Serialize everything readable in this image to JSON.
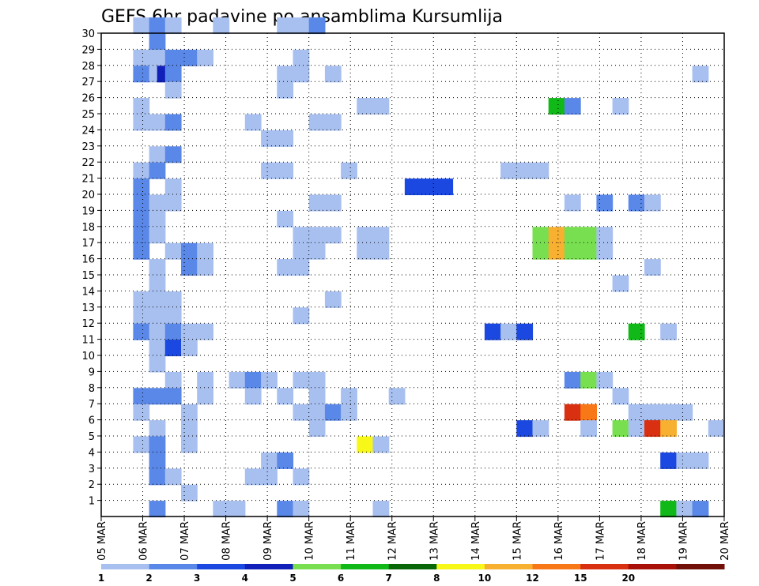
{
  "chart_data": {
    "type": "heatmap",
    "title": "GEFS 6hr padavine po ansamblima Kursumlija",
    "x_ticks": [
      "05 MAR",
      "06 MAR",
      "07 MAR",
      "08 MAR",
      "09 MAR",
      "10 MAR",
      "11 MAR",
      "12 MAR",
      "13 MAR",
      "14 MAR",
      "15 MAR",
      "16 MAR",
      "17 MAR",
      "18 MAR",
      "19 MAR",
      "20 MAR"
    ],
    "y_ticks": [
      "1",
      "2",
      "3",
      "4",
      "5",
      "6",
      "7",
      "8",
      "9",
      "10",
      "11",
      "12",
      "13",
      "14",
      "15",
      "16",
      "17",
      "18",
      "19",
      "20",
      "21",
      "22",
      "23",
      "24",
      "25",
      "26",
      "27",
      "28",
      "29",
      "30"
    ],
    "ylim": [
      0,
      30
    ],
    "grid": true,
    "legend": "colorbar-bottom",
    "colorbar": {
      "levels": [
        "1",
        "2",
        "3",
        "4",
        "5",
        "6",
        "7",
        "8",
        "10",
        "12",
        "15",
        "20"
      ],
      "colors": [
        "#a8c0f0",
        "#5a88e8",
        "#1a48e0",
        "#1020b8",
        "#78e050",
        "#10b818",
        "#086808",
        "#f8f818",
        "#f8b030",
        "#f87818",
        "#d83010",
        "#a81008",
        "#701008"
      ]
    },
    "cells": [
      [
        30,
        2,
        1
      ],
      [
        30,
        3,
        2
      ],
      [
        30,
        4,
        1
      ],
      [
        30,
        7,
        1
      ],
      [
        30,
        11,
        1
      ],
      [
        30,
        12,
        1
      ],
      [
        30,
        13,
        2
      ],
      [
        29,
        3,
        2
      ],
      [
        28,
        2,
        1
      ],
      [
        28,
        3,
        1
      ],
      [
        28,
        4,
        2
      ],
      [
        28,
        5,
        2
      ],
      [
        28,
        6,
        1
      ],
      [
        28,
        12,
        1
      ],
      [
        27,
        2,
        2
      ],
      [
        27,
        3,
        1
      ],
      [
        27,
        3.5,
        4
      ],
      [
        27,
        4,
        2
      ],
      [
        27,
        11,
        1
      ],
      [
        27,
        12,
        1
      ],
      [
        27,
        14,
        1
      ],
      [
        27,
        37,
        1
      ],
      [
        26,
        4,
        1
      ],
      [
        26,
        11,
        1
      ],
      [
        25,
        2,
        1
      ],
      [
        25,
        16,
        1
      ],
      [
        25,
        17,
        1
      ],
      [
        25,
        28,
        6
      ],
      [
        25,
        29,
        2
      ],
      [
        25,
        32,
        1
      ],
      [
        24,
        2,
        1
      ],
      [
        24,
        3,
        1
      ],
      [
        24,
        4,
        2
      ],
      [
        24,
        9,
        1
      ],
      [
        24,
        13,
        1
      ],
      [
        24,
        14,
        1
      ],
      [
        23,
        10,
        1
      ],
      [
        23,
        11,
        1
      ],
      [
        22,
        3,
        1
      ],
      [
        22,
        4,
        2
      ],
      [
        21,
        2,
        1
      ],
      [
        21,
        3,
        2
      ],
      [
        21,
        10,
        1
      ],
      [
        21,
        11,
        1
      ],
      [
        21,
        15,
        1
      ],
      [
        21,
        25,
        1
      ],
      [
        21,
        26,
        1
      ],
      [
        21,
        27,
        1
      ],
      [
        20,
        2,
        2
      ],
      [
        20,
        4,
        1
      ],
      [
        20,
        19,
        3
      ],
      [
        20,
        20,
        3
      ],
      [
        20,
        21,
        3
      ],
      [
        19,
        2,
        2
      ],
      [
        19,
        3,
        1
      ],
      [
        19,
        4,
        1
      ],
      [
        19,
        13,
        1
      ],
      [
        19,
        14,
        1
      ],
      [
        19,
        29,
        1
      ],
      [
        19,
        31,
        2
      ],
      [
        19,
        33,
        2
      ],
      [
        19,
        34,
        1
      ],
      [
        18,
        2,
        2
      ],
      [
        18,
        3,
        1
      ],
      [
        18,
        11,
        1
      ],
      [
        17,
        2,
        2
      ],
      [
        17,
        3,
        1
      ],
      [
        17,
        12,
        1
      ],
      [
        17,
        13,
        1
      ],
      [
        17,
        14,
        1
      ],
      [
        17,
        16,
        1
      ],
      [
        17,
        17,
        1
      ],
      [
        17,
        27,
        5
      ],
      [
        17,
        28,
        10
      ],
      [
        17,
        29,
        5
      ],
      [
        17,
        30,
        5
      ],
      [
        17,
        31,
        1
      ],
      [
        16,
        2,
        2
      ],
      [
        16,
        4,
        1
      ],
      [
        16,
        5,
        2
      ],
      [
        16,
        6,
        1
      ],
      [
        16,
        12,
        1
      ],
      [
        16,
        13,
        1
      ],
      [
        16,
        16,
        1
      ],
      [
        16,
        17,
        1
      ],
      [
        16,
        27,
        5
      ],
      [
        16,
        28,
        10
      ],
      [
        16,
        29,
        5
      ],
      [
        16,
        30,
        5
      ],
      [
        16,
        31,
        1
      ],
      [
        15,
        3,
        1
      ],
      [
        15,
        5,
        2
      ],
      [
        15,
        6,
        1
      ],
      [
        15,
        11,
        1
      ],
      [
        15,
        12,
        1
      ],
      [
        15,
        34,
        1
      ],
      [
        14,
        3,
        1
      ],
      [
        14,
        32,
        1
      ],
      [
        13,
        2,
        1
      ],
      [
        13,
        3,
        1
      ],
      [
        13,
        4,
        1
      ],
      [
        13,
        14,
        1
      ],
      [
        12,
        2,
        1
      ],
      [
        12,
        3,
        1
      ],
      [
        12,
        4,
        1
      ],
      [
        12,
        12,
        1
      ],
      [
        11,
        2,
        2
      ],
      [
        11,
        3,
        1
      ],
      [
        11,
        4,
        2
      ],
      [
        11,
        5,
        1
      ],
      [
        11,
        6,
        1
      ],
      [
        11,
        24,
        3
      ],
      [
        11,
        25,
        1
      ],
      [
        11,
        26,
        3
      ],
      [
        11,
        33,
        6
      ],
      [
        11,
        35,
        1
      ],
      [
        10,
        3,
        1
      ],
      [
        10,
        4,
        3
      ],
      [
        10,
        5,
        1
      ],
      [
        9,
        3,
        1
      ],
      [
        8,
        4,
        1
      ],
      [
        8,
        6,
        1
      ],
      [
        8,
        8,
        1
      ],
      [
        8,
        9,
        2
      ],
      [
        8,
        10,
        1
      ],
      [
        8,
        12,
        1
      ],
      [
        8,
        13,
        1
      ],
      [
        8,
        29,
        2
      ],
      [
        8,
        30,
        5
      ],
      [
        8,
        31,
        1
      ],
      [
        7,
        2,
        2
      ],
      [
        7,
        3,
        2
      ],
      [
        7,
        4,
        2
      ],
      [
        7,
        6,
        1
      ],
      [
        7,
        9,
        1
      ],
      [
        7,
        11,
        1
      ],
      [
        7,
        13,
        1
      ],
      [
        7,
        15,
        1
      ],
      [
        7,
        18,
        1
      ],
      [
        7,
        32,
        1
      ],
      [
        6,
        2,
        1
      ],
      [
        6,
        5,
        1
      ],
      [
        6,
        12,
        1
      ],
      [
        6,
        13,
        1
      ],
      [
        6,
        14,
        2
      ],
      [
        6,
        15,
        1
      ],
      [
        6,
        29,
        15
      ],
      [
        6,
        30,
        12
      ],
      [
        6,
        33,
        1
      ],
      [
        6,
        34,
        1
      ],
      [
        6,
        35,
        1
      ],
      [
        6,
        36,
        1
      ],
      [
        5,
        3,
        1
      ],
      [
        5,
        5,
        1
      ],
      [
        5,
        13,
        1
      ],
      [
        5,
        26,
        3
      ],
      [
        5,
        27,
        1
      ],
      [
        5,
        30,
        1
      ],
      [
        5,
        32,
        5
      ],
      [
        5,
        33,
        1
      ],
      [
        5,
        34,
        15
      ],
      [
        5,
        35,
        10
      ],
      [
        5,
        38,
        1
      ],
      [
        4,
        2,
        1
      ],
      [
        4,
        3,
        2
      ],
      [
        4,
        5,
        1
      ],
      [
        4,
        16,
        8
      ],
      [
        4,
        17,
        1
      ],
      [
        3,
        3,
        2
      ],
      [
        3,
        10,
        1
      ],
      [
        3,
        11,
        2
      ],
      [
        3,
        35,
        3
      ],
      [
        3,
        36,
        1
      ],
      [
        3,
        37,
        1
      ],
      [
        2,
        3,
        2
      ],
      [
        2,
        4,
        1
      ],
      [
        2,
        9,
        1
      ],
      [
        2,
        10,
        1
      ],
      [
        2,
        12,
        1
      ],
      [
        1,
        5,
        1
      ],
      [
        0,
        3,
        2
      ],
      [
        0,
        7,
        1
      ],
      [
        0,
        8,
        1
      ],
      [
        0,
        11,
        2
      ],
      [
        0,
        12,
        1
      ],
      [
        0,
        17,
        1
      ],
      [
        0,
        35,
        6
      ],
      [
        0,
        36,
        1
      ],
      [
        0,
        37,
        2
      ]
    ]
  }
}
